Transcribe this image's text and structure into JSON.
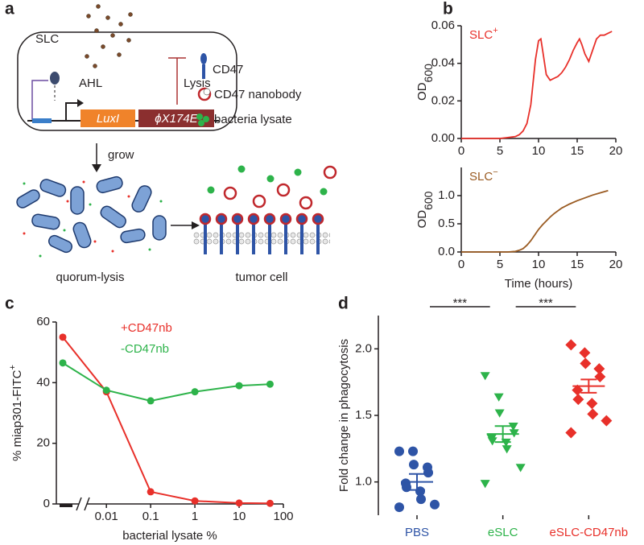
{
  "panel_labels": [
    "a",
    "b",
    "c",
    "d"
  ],
  "diagram": {
    "slc": "SLC",
    "ahl": "AHL",
    "lysis": "Lysis",
    "luxi": "LuxI",
    "phix": "ϕX174E",
    "legend": [
      "CD47",
      "CD47 nanobody",
      "bacteria lysate"
    ],
    "grow": "grow",
    "quorum_lysis": "quorum-lysis",
    "tumor_cell": "tumor cell"
  },
  "chart_data": [
    {
      "type": "line",
      "ylabel": "OD",
      "ylabel_sub": "600",
      "annotation": {
        "text": "SLC",
        "sup": "+",
        "color": "#e8302a"
      },
      "x": [
        0,
        1,
        2,
        3,
        4,
        5,
        6,
        7,
        7.5,
        8,
        8.5,
        9,
        9.3,
        9.6,
        10,
        10.3,
        10.6,
        11,
        11.5,
        12,
        12.5,
        13,
        13.5,
        14,
        14.5,
        15,
        15.3,
        15.6,
        16,
        16.5,
        17,
        17.5,
        18,
        18.5,
        19,
        19.5
      ],
      "series": [
        {
          "color": "#e8302a",
          "values": [
            0,
            0,
            0,
            0,
            0,
            0,
            0.0005,
            0.001,
            0.002,
            0.004,
            0.008,
            0.018,
            0.03,
            0.042,
            0.052,
            0.053,
            0.045,
            0.034,
            0.031,
            0.032,
            0.033,
            0.035,
            0.038,
            0.042,
            0.047,
            0.051,
            0.053,
            0.05,
            0.045,
            0.041,
            0.047,
            0.053,
            0.055,
            0.055,
            0.056,
            0.057
          ]
        }
      ],
      "xlim": [
        0,
        20
      ],
      "xticks": [
        0,
        5,
        10,
        15,
        20
      ],
      "ylim": [
        0,
        0.06
      ],
      "yticks": [
        {
          "value": 0,
          "label": "0.00"
        },
        {
          "value": 0.02,
          "label": "0.02"
        },
        {
          "value": 0.04,
          "label": "0.04"
        },
        {
          "value": 0.06,
          "label": "0.06"
        }
      ]
    },
    {
      "type": "line",
      "ylabel": "OD",
      "ylabel_sub": "600",
      "xlabel": "Time (hours)",
      "annotation": {
        "text": "SLC",
        "sup": "−",
        "color": "#9a5b22"
      },
      "x": [
        0,
        1,
        2,
        3,
        4,
        5,
        6,
        7,
        7.5,
        8,
        8.5,
        9,
        9.5,
        10,
        10.5,
        11,
        11.5,
        12,
        13,
        14,
        15,
        16,
        17,
        18,
        19
      ],
      "series": [
        {
          "color": "#9a5b22",
          "values": [
            0,
            0,
            0,
            0,
            0,
            0,
            0,
            0.01,
            0.03,
            0.06,
            0.12,
            0.2,
            0.3,
            0.4,
            0.48,
            0.55,
            0.62,
            0.68,
            0.78,
            0.85,
            0.91,
            0.96,
            1.01,
            1.05,
            1.09
          ]
        }
      ],
      "xlim": [
        0,
        20
      ],
      "xticks": [
        0,
        5,
        10,
        15,
        20
      ],
      "ylim": [
        0,
        1.5
      ],
      "yticks": [
        {
          "value": 0,
          "label": "0.0"
        },
        {
          "value": 0.5,
          "label": "0.5"
        },
        {
          "value": 1,
          "label": "1.0"
        }
      ]
    },
    {
      "type": "line",
      "xscale": "log",
      "axis_break": true,
      "markers": true,
      "legend": "upper center",
      "ylabel": "% miap301-FITC",
      "ylabel_sup": "+",
      "xlabel": "bacterial lysate %",
      "x": [
        0,
        0.01,
        0.1,
        1,
        10,
        50
      ],
      "series": [
        {
          "name": "+CD47nb",
          "color": "#e8302a",
          "values": [
            55,
            37,
            4,
            1,
            0.3,
            0.2
          ]
        },
        {
          "name": "-CD47nb",
          "color": "#2db34a",
          "values": [
            46.5,
            37.5,
            34,
            37,
            39,
            39.5
          ]
        }
      ],
      "xlim": [
        0.006,
        100
      ],
      "xticks": [
        0.01,
        0.1,
        1,
        10,
        100
      ],
      "ylim": [
        0,
        60
      ],
      "yticks": [
        0,
        20,
        40,
        60
      ]
    },
    {
      "type": "strip",
      "ylabel": "Fold change in phagocytosis",
      "series": [
        {
          "name": "PBS",
          "color": "#2e54a6",
          "marker": "circle",
          "values": [
            1.23,
            1.23,
            1.13,
            1.11,
            1.07,
            0.99,
            0.96,
            0.93,
            0.87,
            0.83,
            0.81
          ],
          "mean": 1.0,
          "sem": 0.06
        },
        {
          "name": "eSLC",
          "color": "#2db34a",
          "marker": "triangle-down",
          "values": [
            1.8,
            1.64,
            1.52,
            1.42,
            1.37,
            1.33,
            1.31,
            1.3,
            1.25,
            1.11,
            0.99
          ],
          "mean": 1.36,
          "sem": 0.06
        },
        {
          "name": "eSLC-CD47nb",
          "color": "#e8302a",
          "marker": "diamond",
          "values": [
            2.03,
            1.97,
            1.89,
            1.85,
            1.79,
            1.69,
            1.62,
            1.59,
            1.51,
            1.46,
            1.37
          ],
          "mean": 1.72,
          "sem": 0.05
        }
      ],
      "significance": [
        {
          "label": "***",
          "pair": [
            0,
            1
          ]
        },
        {
          "label": "***",
          "pair": [
            1,
            2
          ]
        }
      ],
      "ylim": [
        0.75,
        2.25
      ],
      "yticks": [
        {
          "value": 1,
          "label": "1.0"
        },
        {
          "value": 1.5,
          "label": "1.5"
        },
        {
          "value": 2,
          "label": "2.0"
        }
      ]
    }
  ]
}
